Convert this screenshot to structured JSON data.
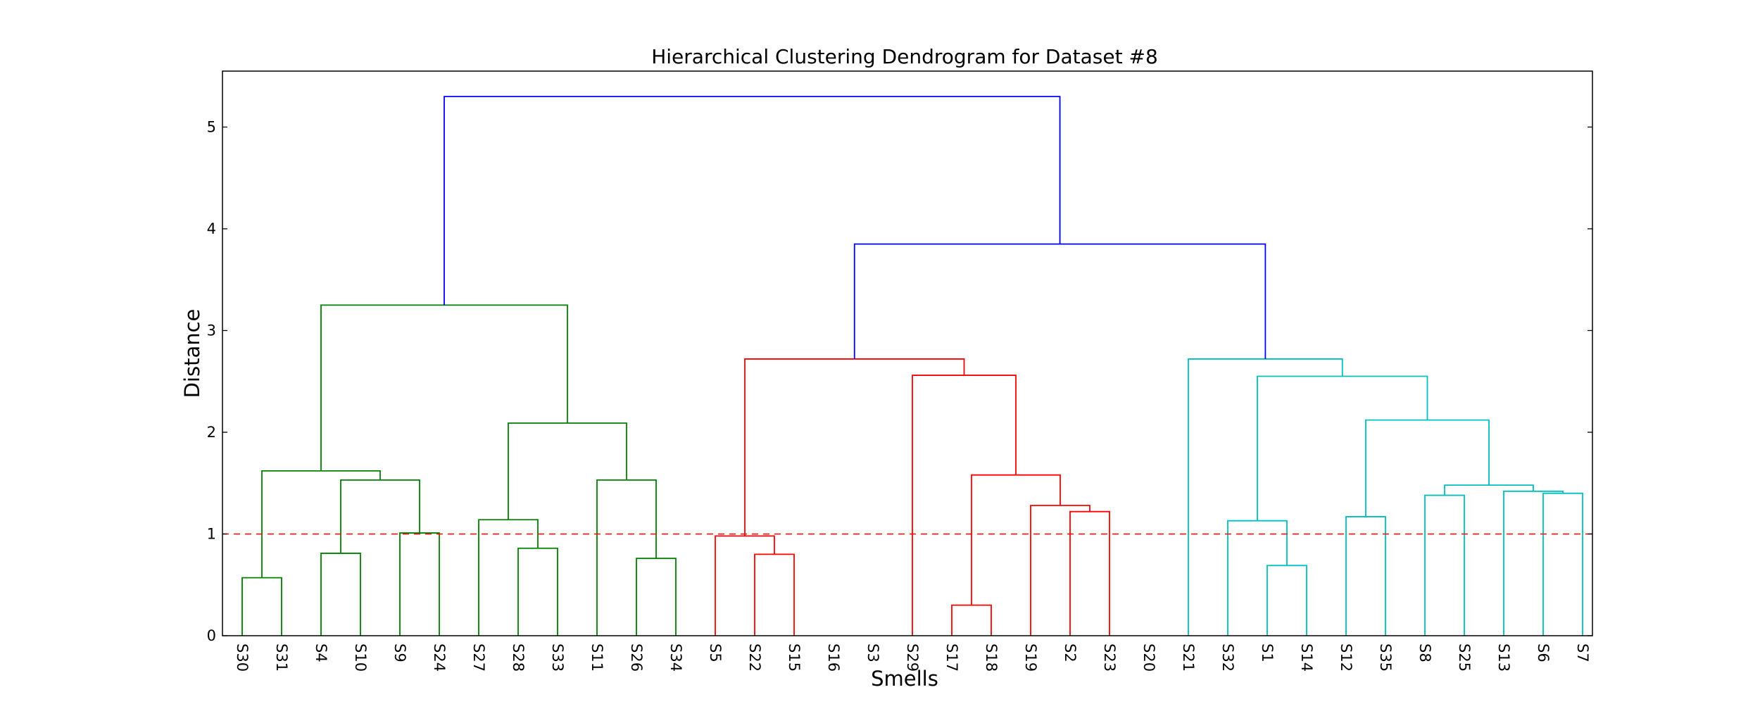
{
  "chart_data": {
    "type": "dendrogram",
    "title": "Hierarchical Clustering Dendrogram for Dataset #8",
    "xlabel": "Smells",
    "ylabel": "Distance",
    "ylim": [
      0,
      5.55
    ],
    "yticks": [
      "0",
      "1",
      "2",
      "3",
      "4",
      "5"
    ],
    "grid": false,
    "threshold": {
      "value": 1.0,
      "color": "#ff0000",
      "style": "dashed"
    },
    "leaves": [
      "S30",
      "S31",
      "S4",
      "S10",
      "S9",
      "S24",
      "S27",
      "S28",
      "S33",
      "S11",
      "S26",
      "S34",
      "S5",
      "S22",
      "S15",
      "S16",
      "S3",
      "S29",
      "S17",
      "S18",
      "S19",
      "S2",
      "S23",
      "S20",
      "S21",
      "S32",
      "S1",
      "S14",
      "S12",
      "S35",
      "S8",
      "S25",
      "S13",
      "S6",
      "S7"
    ],
    "colors": {
      "green": "#008000",
      "red": "#ff0000",
      "cyan": "#00bfbf",
      "blue": "#0000ff"
    },
    "merges": [
      {
        "a": "S30",
        "b": "S31",
        "h": 0.57,
        "color": "green"
      },
      {
        "a": "S4",
        "b": "S10",
        "h": 0.81,
        "color": "green"
      },
      {
        "a": "S9",
        "b": "S24",
        "h": 1.01,
        "color": "green"
      },
      {
        "a": "S4+S10",
        "b": "S9+S24",
        "h": 1.53,
        "color": "green"
      },
      {
        "a": "S30+S31",
        "b": "S4..S24",
        "h": 1.62,
        "color": "green"
      },
      {
        "a": "S28",
        "b": "S33",
        "h": 0.86,
        "color": "green"
      },
      {
        "a": "S27",
        "b": "S28+S33",
        "h": 1.14,
        "color": "green"
      },
      {
        "a": "S26",
        "b": "S34",
        "h": 0.76,
        "color": "green"
      },
      {
        "a": "S11",
        "b": "S26+S34",
        "h": 1.53,
        "color": "green"
      },
      {
        "a": "S27..S33",
        "b": "S11..S34",
        "h": 2.09,
        "color": "green"
      },
      {
        "a": "S30..S24",
        "b": "S27..S34",
        "h": 3.25,
        "color": "green"
      },
      {
        "a": "S22",
        "b": "S15",
        "h": 0.8,
        "color": "red"
      },
      {
        "a": "S5",
        "b": "S22+S15",
        "h": 0.98,
        "color": "red"
      },
      {
        "a": "S17",
        "b": "S18",
        "h": 0.3,
        "color": "red"
      },
      {
        "a": "S2",
        "b": "S23",
        "h": 1.22,
        "color": "red"
      },
      {
        "a": "S19",
        "b": "S2+S23",
        "h": 1.28,
        "color": "red"
      },
      {
        "a": "S17+S18",
        "b": "S19..S23",
        "h": 1.58,
        "color": "red"
      },
      {
        "a": "S29",
        "b": "S17..S23",
        "h": 2.56,
        "color": "red"
      },
      {
        "a": "S5..S15",
        "b": "S29..S23",
        "h": 2.72,
        "color": "red"
      },
      {
        "a": "S1",
        "b": "S14",
        "h": 0.69,
        "color": "cyan"
      },
      {
        "a": "S32",
        "b": "S1+S14",
        "h": 1.13,
        "color": "cyan"
      },
      {
        "a": "S12",
        "b": "S35",
        "h": 1.17,
        "color": "cyan"
      },
      {
        "a": "S8",
        "b": "S25",
        "h": 1.38,
        "color": "cyan"
      },
      {
        "a": "S6",
        "b": "S7",
        "h": 1.4,
        "color": "cyan"
      },
      {
        "a": "S13",
        "b": "S6+S7",
        "h": 1.42,
        "color": "cyan"
      },
      {
        "a": "S8+S25",
        "b": "S13..S7",
        "h": 1.48,
        "color": "cyan"
      },
      {
        "a": "S12+S35",
        "b": "S8..S7",
        "h": 2.12,
        "color": "cyan"
      },
      {
        "a": "S32..S14",
        "b": "S12..S7",
        "h": 2.55,
        "color": "cyan"
      },
      {
        "a": "S21",
        "b": "S32..S7",
        "h": 2.72,
        "color": "cyan"
      },
      {
        "a": "S5..S23",
        "b": "S21..S7",
        "h": 3.85,
        "color": "blue"
      },
      {
        "a": "S30..S34",
        "b": "S5..S7",
        "h": 5.3,
        "color": "blue"
      }
    ]
  }
}
